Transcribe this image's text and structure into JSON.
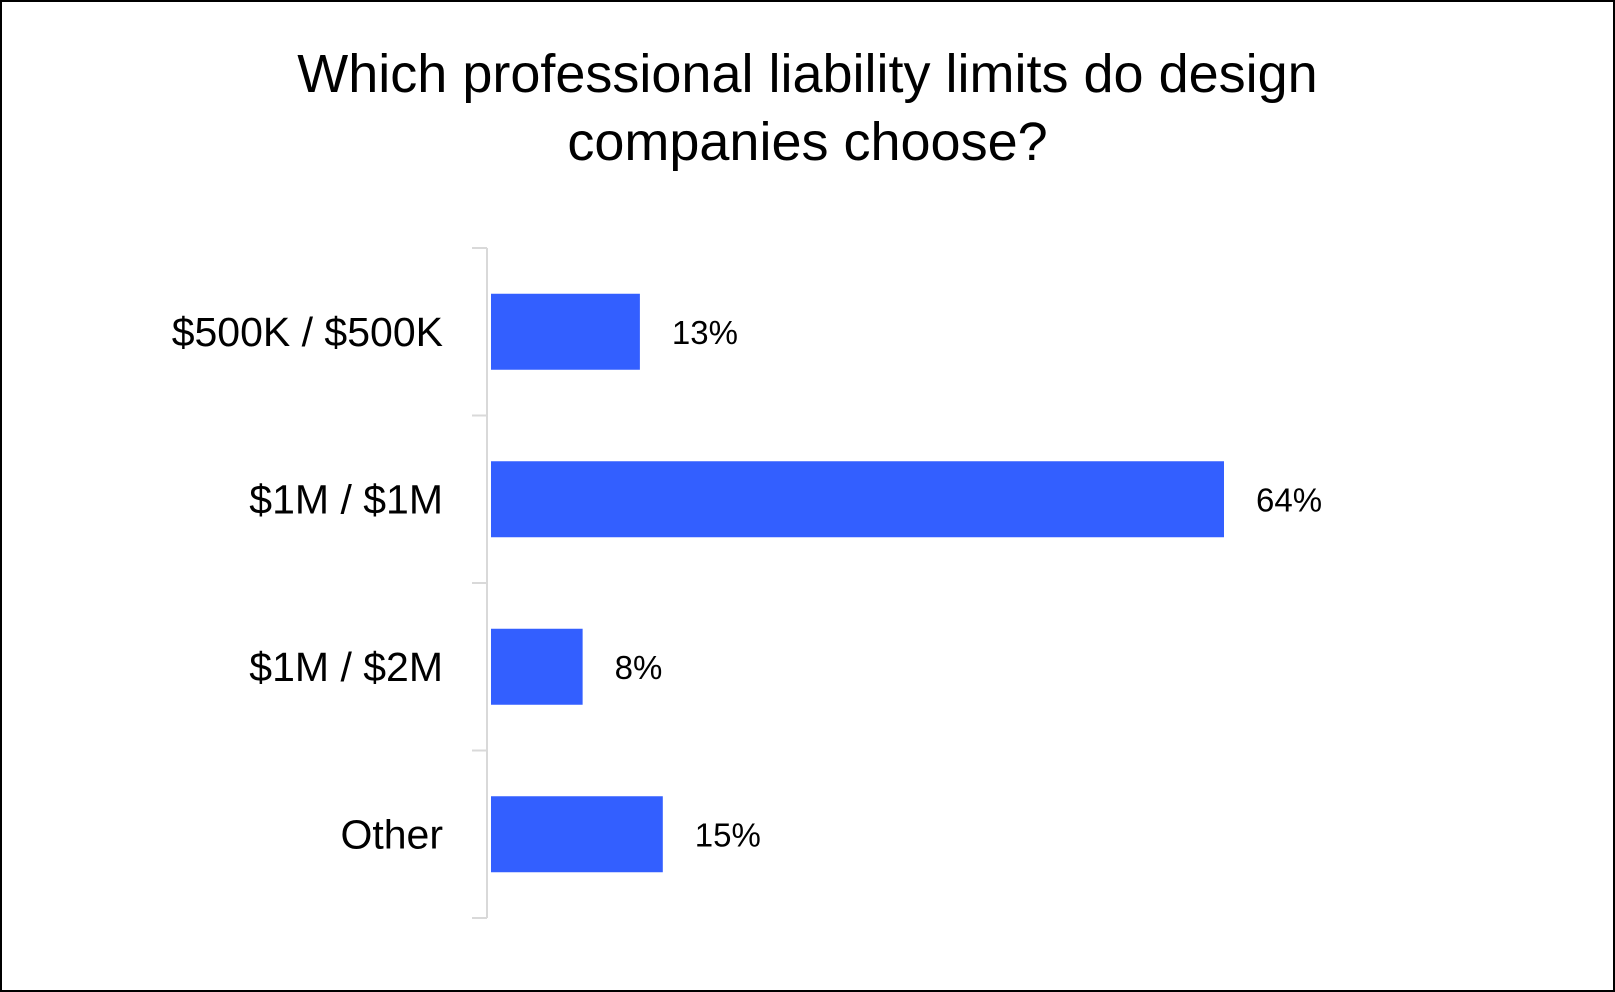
{
  "chart_data": {
    "type": "bar",
    "orientation": "horizontal",
    "title_lines": [
      "Which professional liability limits do design",
      "companies choose?"
    ],
    "categories": [
      "$500K / $500K",
      "$1M / $1M",
      "$1M / $2M",
      "Other"
    ],
    "values": [
      13,
      64,
      8,
      15
    ],
    "value_labels": [
      "13%",
      "64%",
      "8%",
      "15%"
    ],
    "unit": "%",
    "xlim": [
      0,
      64
    ],
    "bar_color": "#335FFF",
    "axis_color": "#D9D9D9",
    "grid": false,
    "legend": "none"
  }
}
